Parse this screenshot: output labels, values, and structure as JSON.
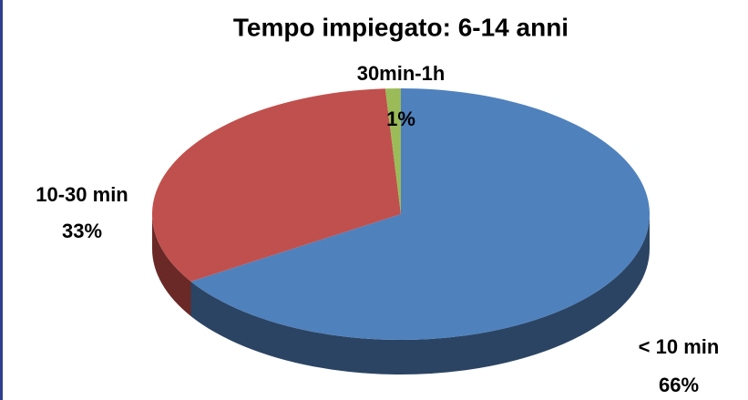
{
  "chart_data": {
    "type": "pie",
    "title": "Tempo impiegato:  6-14 anni",
    "categories": [
      "< 10 min",
      "10-30 min",
      "30min-1h"
    ],
    "values": [
      66,
      33,
      1
    ],
    "value_labels": [
      "66%",
      "33%",
      "1%"
    ],
    "colors": [
      "#4f81bd",
      "#c0504d",
      "#9bbb59"
    ],
    "side_colors": [
      "#2b4463",
      "#6a2927",
      "#566a30"
    ]
  }
}
